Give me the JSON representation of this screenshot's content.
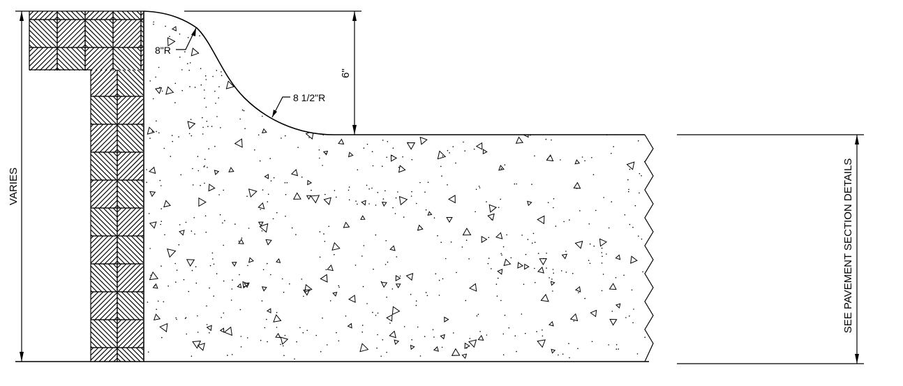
{
  "labels": {
    "varies": "VARIES",
    "height": "6\"",
    "radius_top": "8\"R",
    "radius_cove": "8 1/2\"R",
    "pavement_note": "SEE PAVEMENT SECTION DETAILS"
  }
}
